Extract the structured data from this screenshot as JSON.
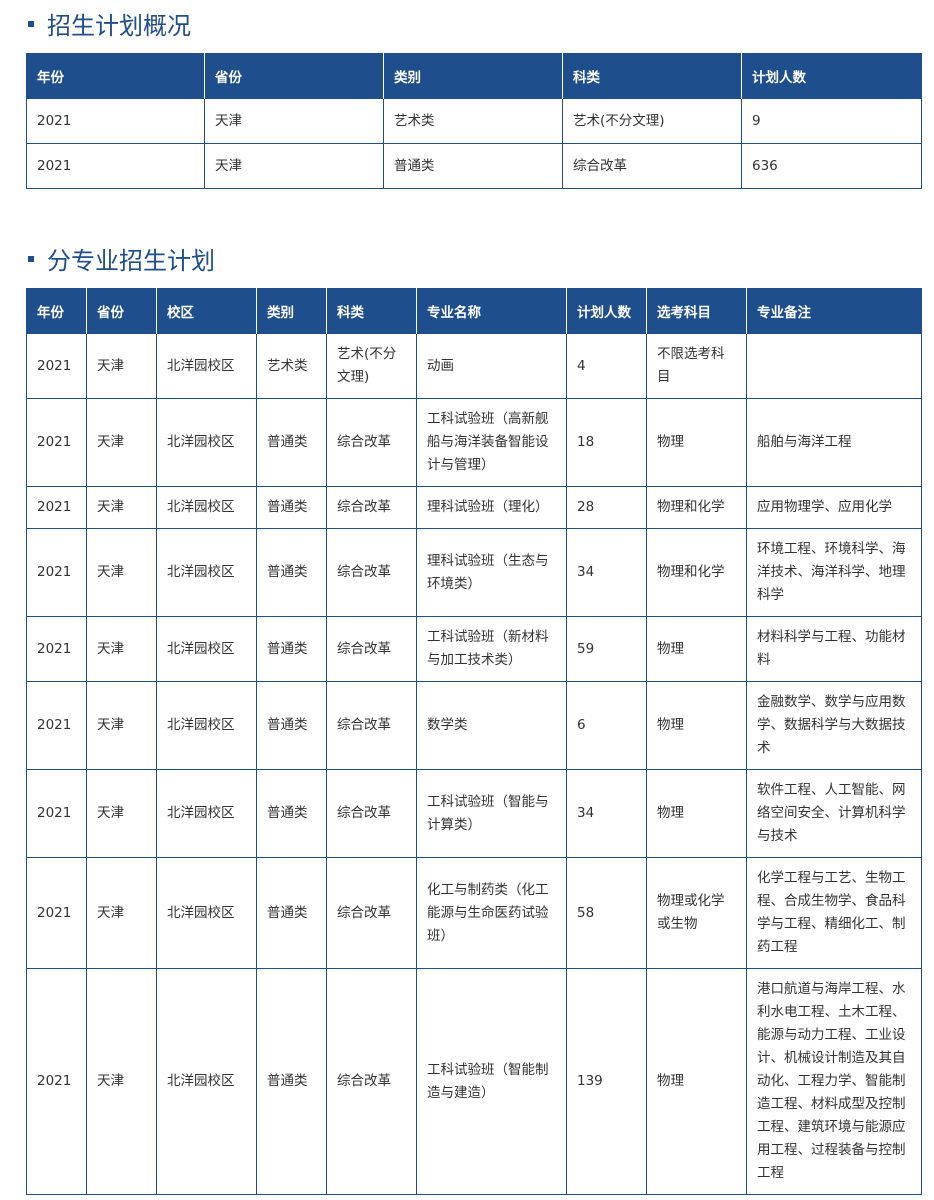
{
  "section1": {
    "title": "招生计划概况",
    "headers": [
      "年份",
      "省份",
      "类别",
      "科类",
      "计划人数"
    ],
    "rows": [
      [
        "2021",
        "天津",
        "艺术类",
        "艺术(不分文理)",
        "9"
      ],
      [
        "2021",
        "天津",
        "普通类",
        "综合改革",
        "636"
      ]
    ]
  },
  "section2": {
    "title": "分专业招生计划",
    "headers": [
      "年份",
      "省份",
      "校区",
      "类别",
      "科类",
      "专业名称",
      "计划人数",
      "选考科目",
      "专业备注"
    ],
    "rows": [
      [
        "2021",
        "天津",
        "北洋园校区",
        "艺术类",
        "艺术(不分文理)",
        "动画",
        "4",
        "不限选考科目",
        ""
      ],
      [
        "2021",
        "天津",
        "北洋园校区",
        "普通类",
        "综合改革",
        "工科试验班（高新舰船与海洋装备智能设计与管理）",
        "18",
        "物理",
        "船舶与海洋工程"
      ],
      [
        "2021",
        "天津",
        "北洋园校区",
        "普通类",
        "综合改革",
        "理科试验班（理化）",
        "28",
        "物理和化学",
        "应用物理学、应用化学"
      ],
      [
        "2021",
        "天津",
        "北洋园校区",
        "普通类",
        "综合改革",
        "理科试验班（生态与环境类）",
        "34",
        "物理和化学",
        "环境工程、环境科学、海洋技术、海洋科学、地理科学"
      ],
      [
        "2021",
        "天津",
        "北洋园校区",
        "普通类",
        "综合改革",
        "工科试验班（新材料与加工技术类）",
        "59",
        "物理",
        "材料科学与工程、功能材料"
      ],
      [
        "2021",
        "天津",
        "北洋园校区",
        "普通类",
        "综合改革",
        "数学类",
        "6",
        "物理",
        "金融数学、数学与应用数学、数据科学与大数据技术"
      ],
      [
        "2021",
        "天津",
        "北洋园校区",
        "普通类",
        "综合改革",
        "工科试验班（智能与计算类）",
        "34",
        "物理",
        "软件工程、人工智能、网络空间安全、计算机科学与技术"
      ],
      [
        "2021",
        "天津",
        "北洋园校区",
        "普通类",
        "综合改革",
        "化工与制药类（化工能源与生命医药试验班）",
        "58",
        "物理或化学或生物",
        "化学工程与工艺、生物工程、合成生物学、食品科学与工程、精细化工、制药工程"
      ],
      [
        "2021",
        "天津",
        "北洋园校区",
        "普通类",
        "综合改革",
        "工科试验班（智能制造与建造）",
        "139",
        "物理",
        "港口航道与海岸工程、水利水电工程、土木工程、能源与动力工程、工业设计、机械设计制造及其自动化、工程力学、智能制造工程、材料成型及控制工程、建筑环境与能源应用工程、过程装备与控制工程"
      ]
    ]
  },
  "colors": {
    "accent": "#1f4e8c"
  }
}
